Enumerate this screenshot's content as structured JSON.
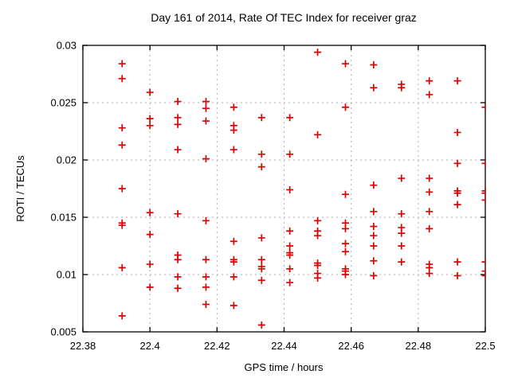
{
  "window": {
    "background": "#ffffff"
  },
  "chart_data": {
    "type": "scatter",
    "title": "Day 161 of 2014, Rate Of TEC Index for receiver graz",
    "xlabel": "GPS time / hours",
    "ylabel": "ROTI / TECUs",
    "xlim": [
      22.38,
      22.5
    ],
    "ylim": [
      0.005,
      0.03
    ],
    "grid": true,
    "legend_position": "none",
    "marker": "plus-icon",
    "marker_color": "#dd0000",
    "grid_color": "#b0b0b0",
    "axis_color": "#000000",
    "xticks": [
      {
        "value": 22.38,
        "label": "22.38"
      },
      {
        "value": 22.4,
        "label": "22.4"
      },
      {
        "value": 22.42,
        "label": "22.42"
      },
      {
        "value": 22.44,
        "label": "22.44"
      },
      {
        "value": 22.46,
        "label": "22.46"
      },
      {
        "value": 22.48,
        "label": "22.48"
      },
      {
        "value": 22.5,
        "label": "22.5"
      }
    ],
    "yticks": [
      {
        "value": 0.005,
        "label": "0.005"
      },
      {
        "value": 0.01,
        "label": "0.01"
      },
      {
        "value": 0.015,
        "label": "0.015"
      },
      {
        "value": 0.02,
        "label": "0.02"
      },
      {
        "value": 0.025,
        "label": "0.025"
      },
      {
        "value": 0.03,
        "label": "0.03"
      }
    ],
    "points": [
      [
        22.3917,
        0.0284
      ],
      [
        22.3917,
        0.0271
      ],
      [
        22.3917,
        0.0228
      ],
      [
        22.3917,
        0.0213
      ],
      [
        22.3917,
        0.0175
      ],
      [
        22.3917,
        0.0145
      ],
      [
        22.3917,
        0.0143
      ],
      [
        22.3917,
        0.0106
      ],
      [
        22.3917,
        0.0064
      ],
      [
        22.4,
        0.0259
      ],
      [
        22.4,
        0.0236
      ],
      [
        22.4,
        0.023
      ],
      [
        22.4,
        0.0154
      ],
      [
        22.4,
        0.0135
      ],
      [
        22.4,
        0.0109
      ],
      [
        22.4,
        0.0089
      ],
      [
        22.4083,
        0.0251
      ],
      [
        22.4083,
        0.0237
      ],
      [
        22.4083,
        0.0231
      ],
      [
        22.4083,
        0.0209
      ],
      [
        22.4083,
        0.0153
      ],
      [
        22.4083,
        0.0117
      ],
      [
        22.4083,
        0.0113
      ],
      [
        22.4083,
        0.0098
      ],
      [
        22.4083,
        0.0088
      ],
      [
        22.4167,
        0.0251
      ],
      [
        22.4167,
        0.0245
      ],
      [
        22.4167,
        0.0234
      ],
      [
        22.4167,
        0.0201
      ],
      [
        22.4167,
        0.0147
      ],
      [
        22.4167,
        0.0113
      ],
      [
        22.4167,
        0.0098
      ],
      [
        22.4167,
        0.0089
      ],
      [
        22.4167,
        0.0074
      ],
      [
        22.425,
        0.0246
      ],
      [
        22.425,
        0.023
      ],
      [
        22.425,
        0.0226
      ],
      [
        22.425,
        0.0209
      ],
      [
        22.425,
        0.0129
      ],
      [
        22.425,
        0.0113
      ],
      [
        22.425,
        0.0111
      ],
      [
        22.425,
        0.0098
      ],
      [
        22.425,
        0.0073
      ],
      [
        22.4333,
        0.0237
      ],
      [
        22.4333,
        0.0205
      ],
      [
        22.4333,
        0.0194
      ],
      [
        22.4333,
        0.0132
      ],
      [
        22.4333,
        0.0113
      ],
      [
        22.4333,
        0.0107
      ],
      [
        22.4333,
        0.0105
      ],
      [
        22.4333,
        0.0095
      ],
      [
        22.4333,
        0.0056
      ],
      [
        22.4417,
        0.0237
      ],
      [
        22.4417,
        0.0205
      ],
      [
        22.4417,
        0.0174
      ],
      [
        22.4417,
        0.0138
      ],
      [
        22.4417,
        0.0125
      ],
      [
        22.4417,
        0.0119
      ],
      [
        22.4417,
        0.0117
      ],
      [
        22.4417,
        0.0105
      ],
      [
        22.4417,
        0.0093
      ],
      [
        22.45,
        0.0294
      ],
      [
        22.45,
        0.0222
      ],
      [
        22.45,
        0.0147
      ],
      [
        22.45,
        0.0138
      ],
      [
        22.45,
        0.0134
      ],
      [
        22.45,
        0.011
      ],
      [
        22.45,
        0.0108
      ],
      [
        22.45,
        0.0101
      ],
      [
        22.45,
        0.0097
      ],
      [
        22.4583,
        0.0284
      ],
      [
        22.4583,
        0.0246
      ],
      [
        22.4583,
        0.017
      ],
      [
        22.4583,
        0.0145
      ],
      [
        22.4583,
        0.014
      ],
      [
        22.4583,
        0.0127
      ],
      [
        22.4583,
        0.012
      ],
      [
        22.4583,
        0.0105
      ],
      [
        22.4583,
        0.0103
      ],
      [
        22.4583,
        0.01
      ],
      [
        22.4667,
        0.0283
      ],
      [
        22.4667,
        0.0263
      ],
      [
        22.4667,
        0.0178
      ],
      [
        22.4667,
        0.0155
      ],
      [
        22.4667,
        0.0142
      ],
      [
        22.4667,
        0.0134
      ],
      [
        22.4667,
        0.0125
      ],
      [
        22.4667,
        0.0112
      ],
      [
        22.4667,
        0.0099
      ],
      [
        22.475,
        0.0266
      ],
      [
        22.475,
        0.0263
      ],
      [
        22.475,
        0.0184
      ],
      [
        22.475,
        0.0153
      ],
      [
        22.475,
        0.0141
      ],
      [
        22.475,
        0.0136
      ],
      [
        22.475,
        0.0125
      ],
      [
        22.475,
        0.0111
      ],
      [
        22.4833,
        0.0269
      ],
      [
        22.4833,
        0.0257
      ],
      [
        22.4833,
        0.0184
      ],
      [
        22.4833,
        0.0172
      ],
      [
        22.4833,
        0.0155
      ],
      [
        22.4833,
        0.014
      ],
      [
        22.4833,
        0.0109
      ],
      [
        22.4833,
        0.0106
      ],
      [
        22.4833,
        0.0101
      ],
      [
        22.4917,
        0.0269
      ],
      [
        22.4917,
        0.0224
      ],
      [
        22.4917,
        0.0197
      ],
      [
        22.4917,
        0.0173
      ],
      [
        22.4917,
        0.0171
      ],
      [
        22.4917,
        0.0161
      ],
      [
        22.4917,
        0.0111
      ],
      [
        22.4917,
        0.0099
      ],
      [
        22.5,
        0.0246
      ],
      [
        22.5,
        0.0197
      ],
      [
        22.5,
        0.0173
      ],
      [
        22.5,
        0.0171
      ],
      [
        22.5,
        0.0165
      ],
      [
        22.5,
        0.0111
      ],
      [
        22.5,
        0.0103
      ],
      [
        22.5,
        0.0099
      ]
    ]
  }
}
